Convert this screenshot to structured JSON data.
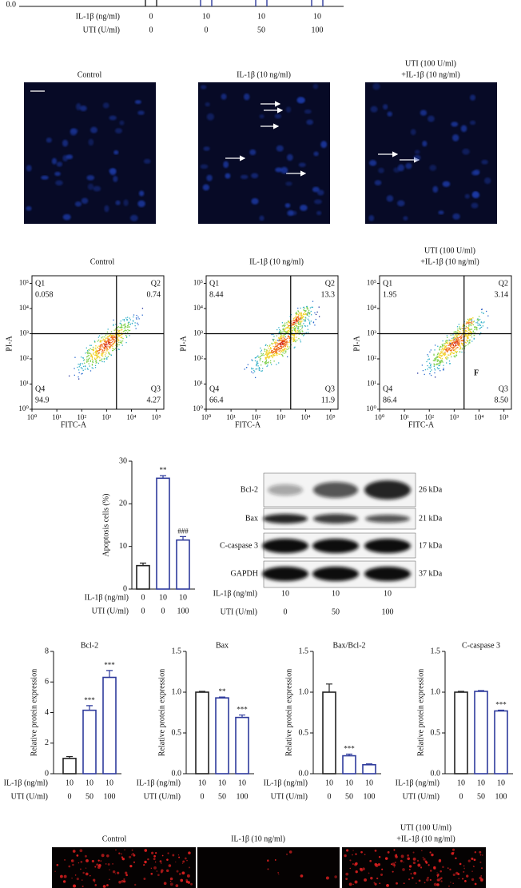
{
  "top_fragment": {
    "ytick": {
      "value": 0,
      "label": "0.0"
    },
    "rows": [
      {
        "label": "IL-1β (ng/ml)",
        "values": [
          "0",
          "10",
          "10",
          "10"
        ]
      },
      {
        "label": "UTI (U/ml)",
        "values": [
          "0",
          "0",
          "50",
          "100"
        ]
      }
    ]
  },
  "microscopy": {
    "titles": [
      [
        "Control"
      ],
      [
        "IL-1β (10 ng/ml)"
      ],
      [
        "UTI (100 U/ml)",
        "+IL-1β (10 ng/ml)"
      ]
    ]
  },
  "flow": {
    "xlabel": "FITC-A",
    "ylabel": "PI-A",
    "log": true,
    "xlim": [
      1,
      200000
    ],
    "ylim": [
      1,
      200000
    ],
    "ticks": [
      {
        "value": 1,
        "label": "10⁰"
      },
      {
        "value": 10,
        "label": "10¹"
      },
      {
        "value": 100,
        "label": "10²"
      },
      {
        "value": 1000,
        "label": "10³"
      },
      {
        "value": 10000,
        "label": "10⁴"
      },
      {
        "value": 100000,
        "label": "10⁵"
      }
    ],
    "gate": {
      "x": 2500,
      "y": 1000
    },
    "plots": [
      {
        "title": [
          "Control"
        ],
        "quadrants": [
          {
            "name": "Q1",
            "value": "0.058"
          },
          {
            "name": "Q2",
            "value": "0.74"
          },
          {
            "name": "Q3",
            "value": "4.27"
          },
          {
            "name": "Q4",
            "value": "94.9"
          }
        ]
      },
      {
        "title": [
          "IL-1β (10 ng/ml)"
        ],
        "quadrants": [
          {
            "name": "Q1",
            "value": "8.44"
          },
          {
            "name": "Q2",
            "value": "13.3"
          },
          {
            "name": "Q3",
            "value": "11.9"
          },
          {
            "name": "Q4",
            "value": "66.4"
          }
        ]
      },
      {
        "title": [
          "UTI (100 U/ml)",
          "+IL-1β (10 ng/ml)"
        ],
        "note": "F",
        "quadrants": [
          {
            "name": "Q1",
            "value": "1.95"
          },
          {
            "name": "Q2",
            "value": "3.14"
          },
          {
            "name": "Q3",
            "value": "8.50"
          },
          {
            "name": "Q4",
            "value": "86.4"
          }
        ]
      }
    ]
  },
  "chart_data": [
    {
      "type": "bar",
      "ylabel": "Apoptosis cells (%)",
      "ylim": [
        0,
        30
      ],
      "yticks": [
        0,
        10,
        20,
        30
      ],
      "values": [
        5.5,
        26,
        11.5
      ],
      "errors": [
        0.6,
        0.6,
        0.8
      ],
      "annotations": [
        null,
        "**",
        "###"
      ],
      "colors": [
        "#222222",
        "#2f3b9c",
        "#2f3b9c"
      ],
      "conditions": [
        {
          "label": "IL-1β (ng/ml)",
          "values": [
            "0",
            "10",
            "10"
          ]
        },
        {
          "label": "UTI (U/ml)",
          "values": [
            "0",
            "0",
            "100"
          ]
        }
      ]
    },
    {
      "type": "bar",
      "title": "Bcl-2",
      "ylabel": "Relative protein expression",
      "ylim": [
        0,
        8
      ],
      "yticks": [
        0,
        2,
        4,
        6,
        8
      ],
      "values": [
        1,
        4.15,
        6.3
      ],
      "errors": [
        0.12,
        0.3,
        0.45
      ],
      "annotations": [
        null,
        "***",
        "***"
      ],
      "colors": [
        "#222222",
        "#2f3b9c",
        "#2f3b9c"
      ],
      "conditions": [
        {
          "label": "IL-1β (ng/ml)",
          "values": [
            "10",
            "10",
            "10"
          ]
        },
        {
          "label": "UTI (U/ml)",
          "values": [
            "0",
            "50",
            "100"
          ]
        }
      ]
    },
    {
      "type": "bar",
      "title": "Bax",
      "ylabel": "Relative protein expression",
      "ylim": [
        0,
        1.5
      ],
      "yticks": [
        {
          "value": 0,
          "label": "0.0"
        },
        0.5,
        {
          "value": 1,
          "label": "1.0"
        },
        1.5
      ],
      "values": [
        1,
        0.93,
        0.69
      ],
      "errors": [
        0.01,
        0.01,
        0.03
      ],
      "annotations": [
        null,
        "**",
        "***"
      ],
      "colors": [
        "#222222",
        "#2f3b9c",
        "#2f3b9c"
      ],
      "conditions": [
        {
          "label": "IL-1β (ng/ml)",
          "values": [
            "10",
            "10",
            "10"
          ]
        },
        {
          "label": "UTI (U/ml)",
          "values": [
            "0",
            "50",
            "100"
          ]
        }
      ]
    },
    {
      "type": "bar",
      "title": "Bax/Bcl-2",
      "ylabel": "Relative protein expression",
      "ylim": [
        0,
        1.5
      ],
      "yticks": [
        {
          "value": 0,
          "label": "0.0"
        },
        0.5,
        {
          "value": 1,
          "label": "1.0"
        },
        1.5
      ],
      "values": [
        1,
        0.22,
        0.11
      ],
      "errors": [
        0.1,
        0.02,
        0.01
      ],
      "annotations": [
        null,
        "***",
        null
      ],
      "colors": [
        "#222222",
        "#2f3b9c",
        "#2f3b9c"
      ],
      "conditions": [
        {
          "label": "IL-1β (ng/ml)",
          "values": [
            "10",
            "10",
            "10"
          ]
        },
        {
          "label": "UTI (U/ml)",
          "values": [
            "0",
            "50",
            "100"
          ]
        }
      ]
    },
    {
      "type": "bar",
      "title": "C-caspase 3",
      "ylabel": "Relative protein expression",
      "ylim": [
        0,
        1.5
      ],
      "yticks": [
        {
          "value": 0,
          "label": "0.0"
        },
        0.5,
        {
          "value": 1,
          "label": "1.0"
        },
        1.5
      ],
      "values": [
        1,
        1.01,
        0.77
      ],
      "errors": [
        0.01,
        0.01,
        0.01
      ],
      "annotations": [
        null,
        null,
        "***"
      ],
      "colors": [
        "#222222",
        "#2f3b9c",
        "#2f3b9c"
      ],
      "conditions": [
        {
          "label": "IL-1β (ng/ml)",
          "values": [
            "10",
            "10",
            "10"
          ]
        },
        {
          "label": "UTI (U/ml)",
          "values": [
            "0",
            "50",
            "100"
          ]
        }
      ]
    }
  ],
  "western": {
    "bands": [
      {
        "name": "Bcl-2",
        "size": "26 kDa"
      },
      {
        "name": "Bax",
        "size": "21 kDa"
      },
      {
        "name": "C-caspase 3",
        "size": "17 kDa"
      },
      {
        "name": "GAPDH",
        "size": "37 kDa"
      }
    ],
    "rows": [
      {
        "label": "IL-1β (ng/ml)",
        "values": [
          "10",
          "10",
          "10"
        ]
      },
      {
        "label": "UTI (U/ml)",
        "values": [
          "0",
          "50",
          "100"
        ]
      }
    ]
  },
  "bottom": {
    "titles": [
      [
        "Control"
      ],
      [
        "IL-1β (10 ng/ml)"
      ],
      [
        "UTI (100 U/ml)",
        "+IL-1β (10 ng/ml)"
      ]
    ]
  }
}
